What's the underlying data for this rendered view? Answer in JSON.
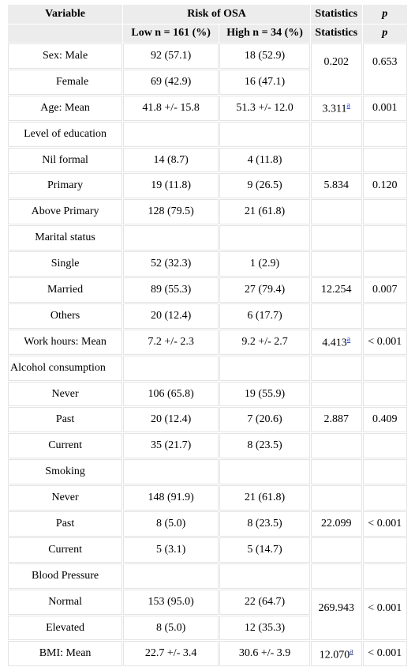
{
  "header": {
    "row1": [
      "Variable",
      "Risk of OSA",
      "Statistics",
      "p"
    ],
    "row2": [
      "Low n = 161 (%)",
      "High n = 34 (%)",
      "Statistics",
      "p"
    ]
  },
  "rows": [
    {
      "label": "Sex: Male",
      "low": "92 (57.1)",
      "high": "18 (52.9)",
      "stat": "0.202",
      "p": "0.653"
    },
    {
      "label": "Female",
      "low": "69 (42.9)",
      "high": "16 (47.1)"
    },
    {
      "label": "Age: Mean",
      "low": "41.8 +/- 15.8",
      "high": "51.3 +/- 12.0",
      "stat": "3.311",
      "note": "a",
      "p": "0.001"
    },
    {
      "label": "Level of education",
      "low": "",
      "high": "",
      "stat": "",
      "p": ""
    },
    {
      "label": "Nil formal",
      "low": "14 (8.7)",
      "high": "4 (11.8)",
      "stat": "",
      "p": ""
    },
    {
      "label": "Primary",
      "low": "19 (11.8)",
      "high": "9 (26.5)",
      "stat": "5.834",
      "p": "0.120"
    },
    {
      "label": "Above Primary",
      "low": "128 (79.5)",
      "high": "21 (61.8)",
      "stat": "",
      "p": ""
    },
    {
      "label": "Marital status",
      "low": "",
      "high": "",
      "stat": "",
      "p": ""
    },
    {
      "label": "Single",
      "low": "52 (32.3)",
      "high": "1 (2.9)",
      "stat": "",
      "p": ""
    },
    {
      "label": "Married",
      "low": "89 (55.3)",
      "high": "27 (79.4)",
      "stat": "12.254",
      "p": "0.007"
    },
    {
      "label": "Others",
      "low": "20 (12.4)",
      "high": "6 (17.7)",
      "stat": "",
      "p": ""
    },
    {
      "label": "Work hours: Mean",
      "low": "7.2 +/- 2.3",
      "high": "9.2 +/- 2.7",
      "stat": "4.413",
      "note": "a",
      "p": "< 0.001"
    },
    {
      "label": "Alcohol consumption",
      "low": "",
      "high": "",
      "stat": "",
      "p": ""
    },
    {
      "label": "Never",
      "low": "106 (65.8)",
      "high": "19 (55.9)",
      "stat": "",
      "p": ""
    },
    {
      "label": "Past",
      "low": "20 (12.4)",
      "high": "7 (20.6)",
      "stat": "2.887",
      "p": "0.409"
    },
    {
      "label": "Current",
      "low": "35 (21.7)",
      "high": "8 (23.5)",
      "stat": "",
      "p": ""
    },
    {
      "label": "Smoking",
      "low": "",
      "high": "",
      "stat": "",
      "p": ""
    },
    {
      "label": "Never",
      "low": "148 (91.9)",
      "high": "21 (61.8)",
      "stat": "",
      "p": ""
    },
    {
      "label": "Past",
      "low": "8 (5.0)",
      "high": "8 (23.5)",
      "stat": "22.099",
      "p": "< 0.001"
    },
    {
      "label": "Current",
      "low": "5 (3.1)",
      "high": "5 (14.7)",
      "stat": "",
      "p": ""
    },
    {
      "label": "Blood Pressure",
      "low": "",
      "high": "",
      "stat": "",
      "p": ""
    },
    {
      "label": "Normal",
      "low": "153 (95.0)",
      "high": "22 (64.7)",
      "stat": "269.943",
      "p": "< 0.001"
    },
    {
      "label": "Elevated",
      "low": "8 (5.0)",
      "high": "12 (35.3)"
    },
    {
      "label": "BMI: Mean",
      "low": "22.7 +/- 3.4",
      "high": "30.6 +/- 3.9",
      "stat": "12.070",
      "note": "a",
      "p": "< 0.001"
    }
  ]
}
